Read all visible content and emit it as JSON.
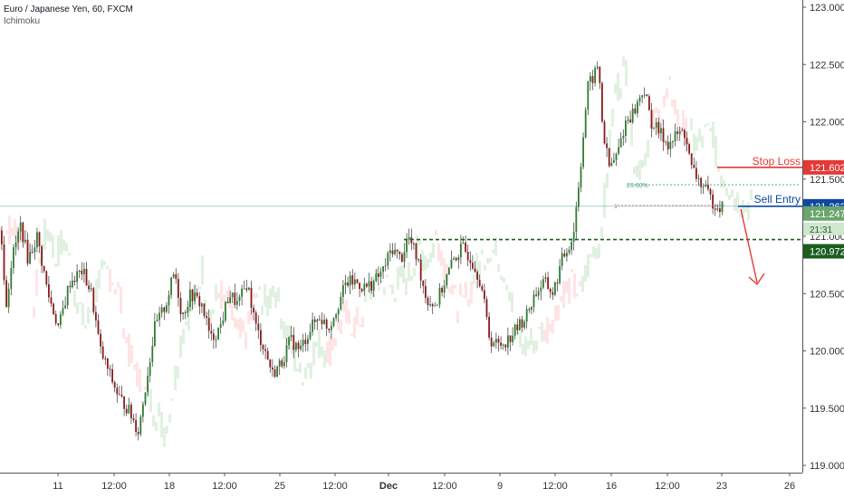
{
  "chart_data": {
    "type": "candlestick",
    "title": "Euro / Japanese Yen, 60, FXCM",
    "indicator": "Ichimoku",
    "y_ticks": [
      "123.000",
      "122.500",
      "122.000",
      "121.500",
      "121.000",
      "120.500",
      "120.000",
      "119.500",
      "119.000"
    ],
    "x_ticks": [
      "11",
      "12:00",
      "18",
      "12:00",
      "25",
      "12:00",
      "Dec",
      "12:00",
      "9",
      "12:00",
      "16",
      "12:00",
      "23",
      "26"
    ],
    "ylim": [
      118.98,
      123.1
    ],
    "price_path": [
      [
        121.0,
        121.05
      ],
      [
        6,
        120.4
      ],
      [
        12,
        120.8
      ],
      [
        22,
        121.1
      ],
      [
        30,
        120.8
      ],
      [
        40,
        121.0
      ],
      [
        52,
        120.5
      ],
      [
        64,
        120.2
      ],
      [
        76,
        120.6
      ],
      [
        90,
        120.7
      ],
      [
        100,
        120.5
      ],
      [
        110,
        120.0
      ],
      [
        120,
        119.8
      ],
      [
        130,
        119.6
      ],
      [
        140,
        119.5
      ],
      [
        152,
        119.3
      ],
      [
        160,
        119.7
      ],
      [
        170,
        120.2
      ],
      [
        182,
        120.4
      ],
      [
        192,
        120.7
      ],
      [
        200,
        120.3
      ],
      [
        210,
        120.5
      ],
      [
        222,
        120.4
      ],
      [
        232,
        120.1
      ],
      [
        242,
        120.2
      ],
      [
        252,
        120.5
      ],
      [
        262,
        120.4
      ],
      [
        272,
        120.6
      ],
      [
        282,
        120.2
      ],
      [
        292,
        120.0
      ],
      [
        300,
        119.8
      ],
      [
        310,
        119.9
      ],
      [
        320,
        120.1
      ],
      [
        330,
        120.0
      ],
      [
        342,
        120.2
      ],
      [
        352,
        120.3
      ],
      [
        362,
        120.2
      ],
      [
        372,
        120.4
      ],
      [
        382,
        120.6
      ],
      [
        392,
        120.6
      ],
      [
        402,
        120.55
      ],
      [
        412,
        120.6
      ],
      [
        422,
        120.7
      ],
      [
        432,
        120.9
      ],
      [
        442,
        120.8
      ],
      [
        450,
        121.0
      ],
      [
        460,
        120.8
      ],
      [
        470,
        120.45
      ],
      [
        480,
        120.4
      ],
      [
        490,
        120.6
      ],
      [
        500,
        120.8
      ],
      [
        510,
        120.9
      ],
      [
        520,
        120.8
      ],
      [
        530,
        120.6
      ],
      [
        540,
        120.1
      ],
      [
        550,
        120.05
      ],
      [
        560,
        120.1
      ],
      [
        570,
        120.2
      ],
      [
        580,
        120.3
      ],
      [
        590,
        120.5
      ],
      [
        600,
        120.6
      ],
      [
        610,
        120.5
      ],
      [
        620,
        120.8
      ],
      [
        632,
        121.0
      ],
      [
        640,
        121.6
      ],
      [
        648,
        122.3
      ],
      [
        655,
        122.4
      ],
      [
        660,
        122.5
      ],
      [
        665,
        121.9
      ],
      [
        672,
        121.6
      ],
      [
        680,
        121.7
      ],
      [
        690,
        122.0
      ],
      [
        700,
        122.1
      ],
      [
        710,
        122.3
      ],
      [
        718,
        122.0
      ],
      [
        728,
        121.9
      ],
      [
        738,
        121.8
      ],
      [
        748,
        121.9
      ],
      [
        756,
        121.9
      ],
      [
        762,
        121.6
      ],
      [
        770,
        121.5
      ],
      [
        778,
        121.4
      ],
      [
        786,
        121.3
      ],
      [
        792,
        121.27
      ],
      [
        798,
        121.25
      ]
    ],
    "stop_loss": {
      "label": "Stop Loss",
      "price": "121.602",
      "color": "#e53935"
    },
    "sell_entry": {
      "label": "Sell Entry",
      "price": "121.262",
      "color": "#0d47a1"
    },
    "support": {
      "price": "120.972",
      "color": "#1b5e20"
    },
    "current": {
      "price": "121.247",
      "countdown": "21:31",
      "color": "#4caf50"
    },
    "fib_label": "23.60%",
    "fib_zero_label": "1"
  }
}
